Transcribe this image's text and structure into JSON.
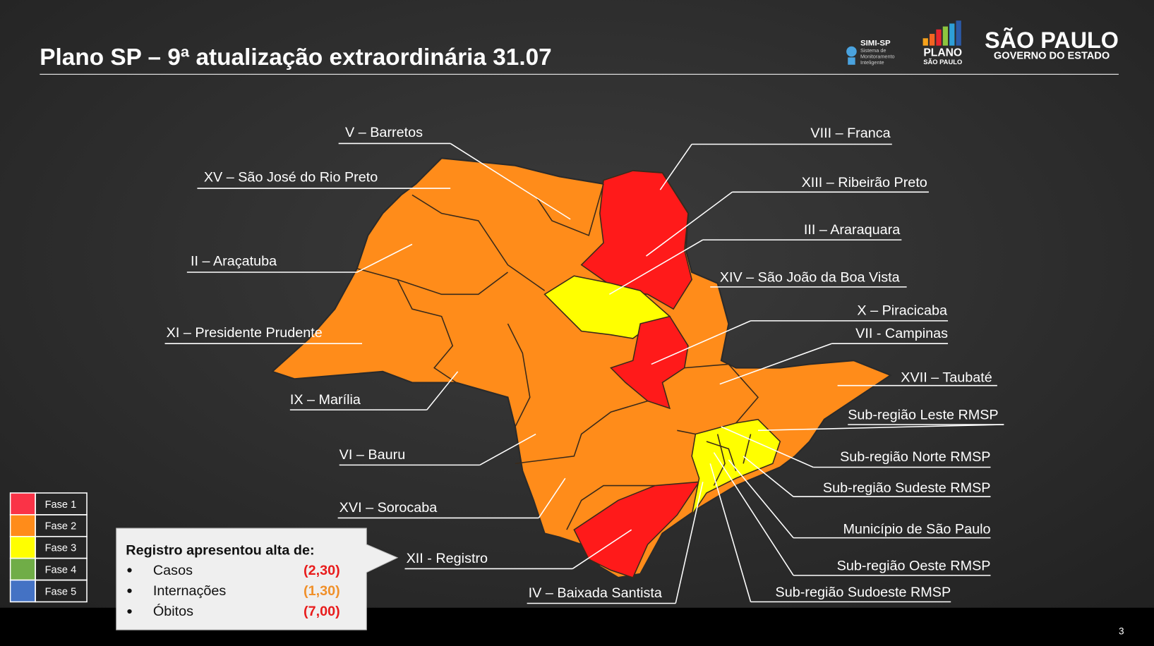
{
  "header": {
    "title": "Plano SP – 9ª atualização extraordinária 31.07",
    "logos": {
      "simi": [
        "SIMI-SP",
        "Sistema de",
        "Monitoramento",
        "Inteligente"
      ],
      "plano": [
        "PLANO",
        "SÃO PAULO"
      ],
      "governo": [
        "SÃO PAULO",
        "GOVERNO DO ESTADO"
      ]
    }
  },
  "map": {
    "regions": [
      "V – Barretos",
      "XV – São José do Rio Preto",
      "II – Araçatuba",
      "XI – Presidente Prudente",
      "IX – Marília",
      "VI – Bauru",
      "XVI – Sorocaba",
      "XII - Registro",
      "IV – Baixada Santista",
      "VIII – Franca",
      "XIII – Ribeirão Preto",
      "III – Araraquara",
      "XIV – São João da Boa Vista",
      "X – Piracicaba",
      "VII - Campinas",
      "XVII – Taubaté",
      "Sub-região Leste RMSP",
      "Sub-região Norte RMSP",
      "Sub-região Sudeste RMSP",
      "Município de São Paulo",
      "Sub-região Oeste RMSP",
      "Sub-região Sudoeste RMSP"
    ]
  },
  "legend": [
    {
      "label": "Fase 1",
      "color": "#fa3347"
    },
    {
      "label": "Fase 2",
      "color": "#ff8c1a"
    },
    {
      "label": "Fase 3",
      "color": "#ffff00"
    },
    {
      "label": "Fase 4",
      "color": "#70ad47"
    },
    {
      "label": "Fase 5",
      "color": "#4472c4"
    }
  ],
  "callout": {
    "title": "Registro apresentou alta de:",
    "items": [
      {
        "label": "Casos",
        "value": "(2,30)",
        "color": "#e81c1c"
      },
      {
        "label": "Internações",
        "value": "(1,30)",
        "color": "#f0902a"
      },
      {
        "label": "Óbitos",
        "value": "(7,00)",
        "color": "#e81c1c"
      }
    ]
  },
  "page_number": "3"
}
